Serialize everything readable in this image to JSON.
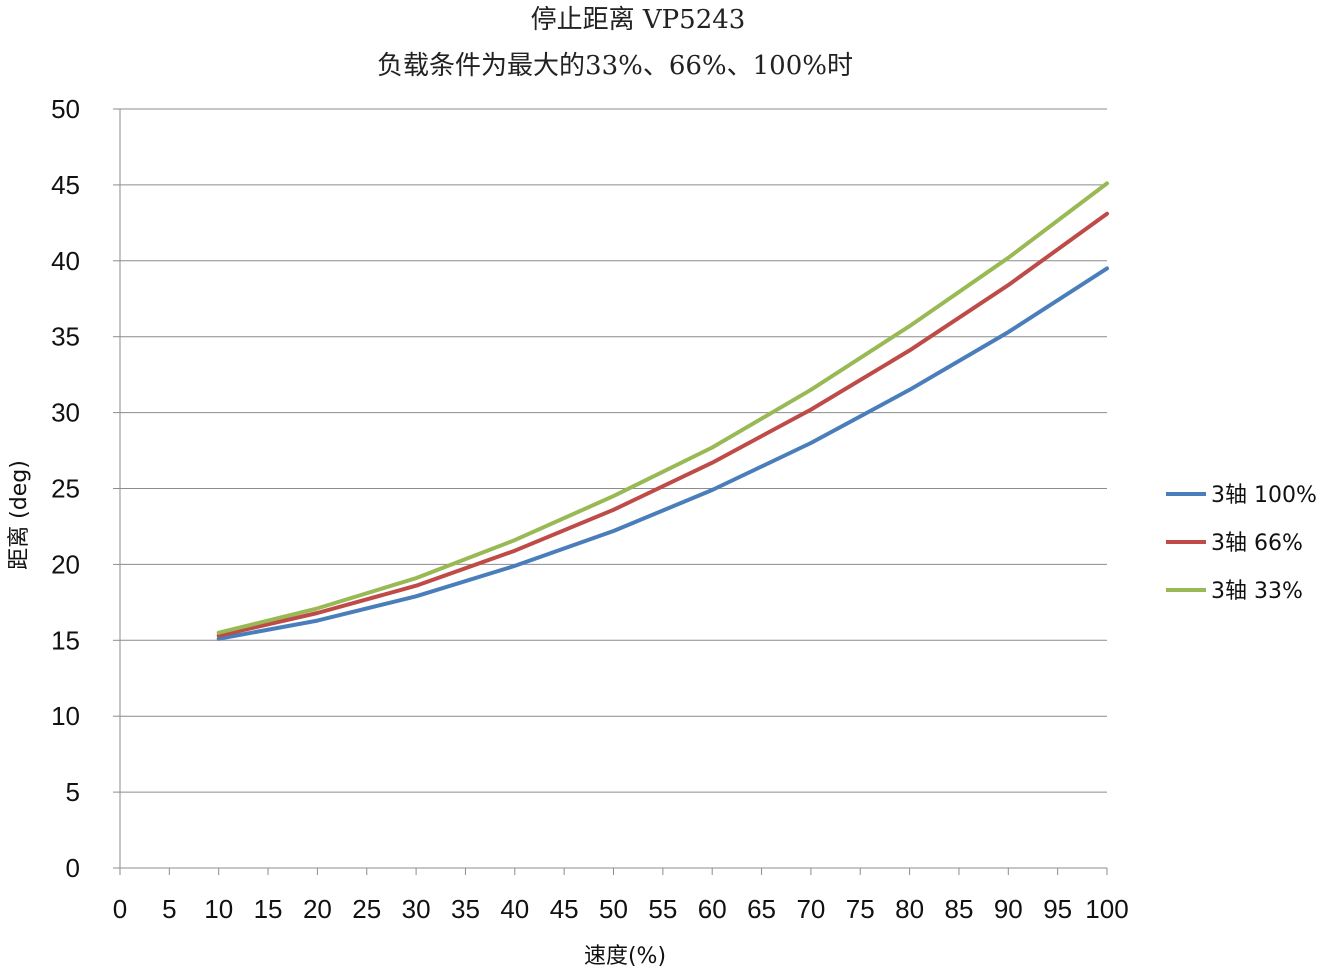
{
  "chart_data": {
    "type": "line",
    "title": "停止距离 VP5243",
    "subtitle": "负载条件为最大的33%、66%、100%时",
    "xlabel": "速度(%)",
    "ylabel": "距离 (deg)",
    "xlim": [
      0,
      100
    ],
    "ylim": [
      0,
      50
    ],
    "x_ticks": [
      0,
      5,
      10,
      15,
      20,
      25,
      30,
      35,
      40,
      45,
      50,
      55,
      60,
      65,
      70,
      75,
      80,
      85,
      90,
      95,
      100
    ],
    "y_ticks": [
      0,
      5,
      10,
      15,
      20,
      25,
      30,
      35,
      40,
      45,
      50
    ],
    "grid": "horizontal",
    "legend_position": "right",
    "x": [
      10,
      20,
      30,
      40,
      50,
      60,
      70,
      80,
      90,
      100
    ],
    "series": [
      {
        "name": "3轴  100%",
        "color": "#4a7ebb",
        "values": [
          15.1,
          16.3,
          17.9,
          19.9,
          22.2,
          24.9,
          28.0,
          31.5,
          35.3,
          39.5
        ]
      },
      {
        "name": "3轴  66%",
        "color": "#be4b48",
        "values": [
          15.3,
          16.8,
          18.6,
          20.9,
          23.6,
          26.7,
          30.2,
          34.1,
          38.4,
          43.1
        ]
      },
      {
        "name": "3轴  33%",
        "color": "#98b954",
        "values": [
          15.5,
          17.1,
          19.1,
          21.6,
          24.5,
          27.7,
          31.5,
          35.7,
          40.2,
          45.1
        ]
      }
    ]
  }
}
